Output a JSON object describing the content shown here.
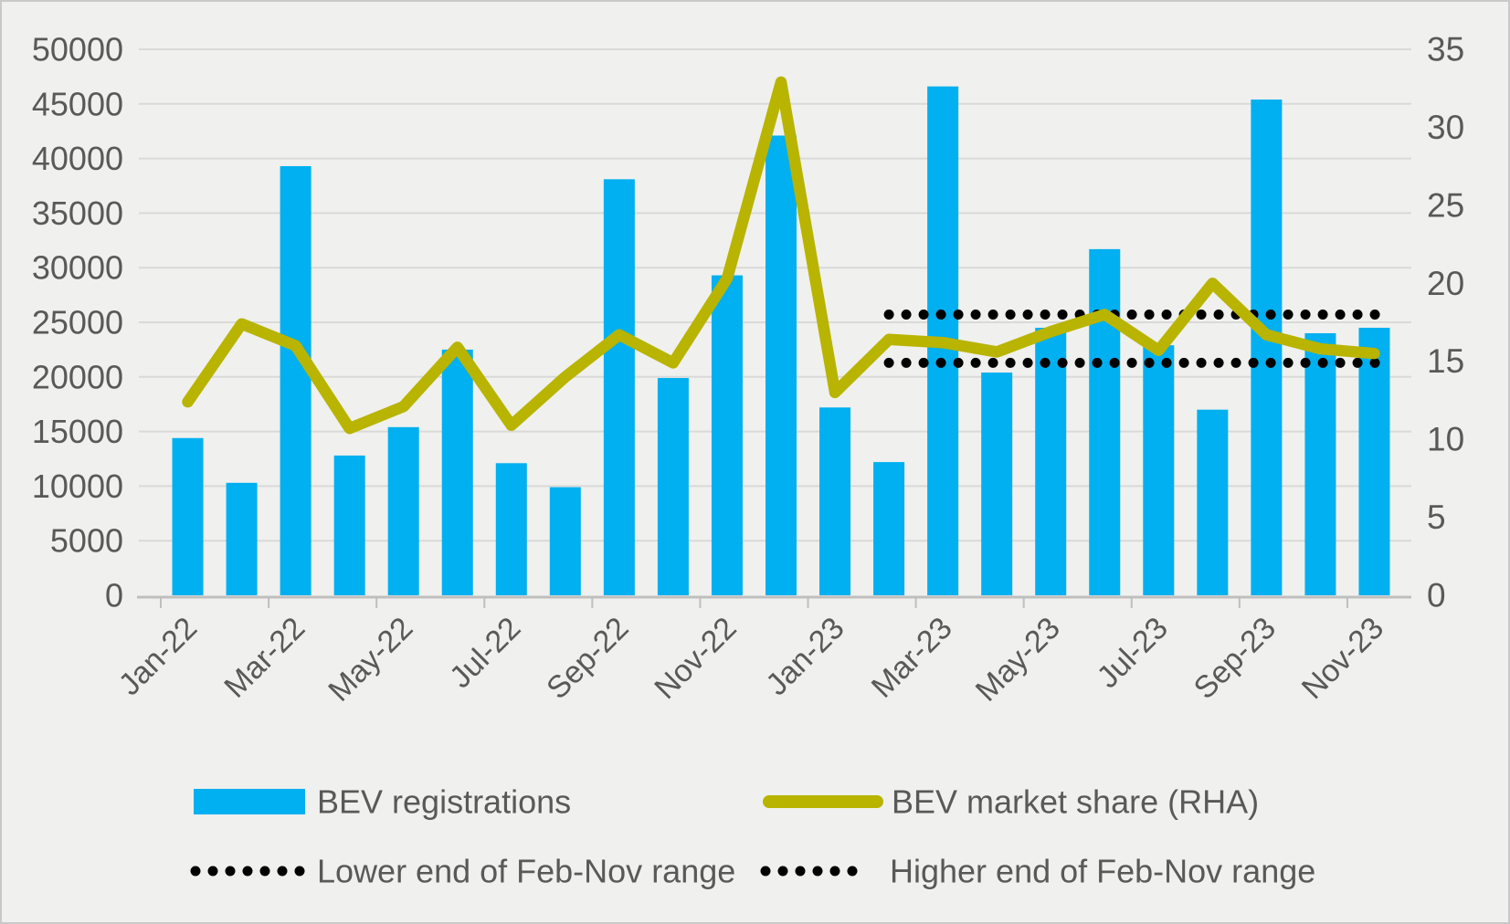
{
  "chart_data": {
    "type": "bar",
    "title": "",
    "categories": [
      "Jan-22",
      "Feb-22",
      "Mar-22",
      "Apr-22",
      "May-22",
      "Jun-22",
      "Jul-22",
      "Aug-22",
      "Sep-22",
      "Oct-22",
      "Nov-22",
      "Dec-22",
      "Jan-23",
      "Feb-23",
      "Mar-23",
      "Apr-23",
      "May-23",
      "Jun-23",
      "Jul-23",
      "Aug-23",
      "Sep-23",
      "Oct-23",
      "Nov-23"
    ],
    "x_tick_labels": [
      "Jan-22",
      "Mar-22",
      "May-22",
      "Jul-22",
      "Sep-22",
      "Nov-22",
      "Jan-23",
      "Mar-23",
      "May-23",
      "Jul-23",
      "Sep-23",
      "Nov-23"
    ],
    "series": [
      {
        "name": "BEV registrations",
        "type": "bar",
        "axis": "left",
        "values": [
          14400,
          10300,
          39300,
          12800,
          15400,
          22500,
          12100,
          9900,
          38100,
          19900,
          29300,
          42100,
          17200,
          12200,
          46600,
          20400,
          24500,
          31700,
          22900,
          17000,
          45400,
          24000,
          24500
        ]
      },
      {
        "name": "BEV market share (RHA)",
        "type": "line",
        "axis": "right",
        "values": [
          12.4,
          17.4,
          16.0,
          10.7,
          12.1,
          15.9,
          10.9,
          14.0,
          16.7,
          14.9,
          20.3,
          32.9,
          13.0,
          16.4,
          16.2,
          15.6,
          16.9,
          18.0,
          15.7,
          20.0,
          16.7,
          15.8,
          15.5
        ]
      },
      {
        "name": "Lower end of Feb-Nov range",
        "type": "dotted",
        "axis": "right",
        "constant": 14.9,
        "from": "Feb-23",
        "to": "Nov-23"
      },
      {
        "name": "Higher end of Feb-Nov range",
        "type": "dotted",
        "axis": "right",
        "constant": 18.0,
        "from": "Feb-23",
        "to": "Nov-23"
      }
    ],
    "left_axis": {
      "min": 0,
      "max": 50000,
      "step": 5000,
      "tick_labels": [
        "0",
        "5000",
        "10000",
        "15000",
        "20000",
        "25000",
        "30000",
        "35000",
        "40000",
        "45000",
        "50000"
      ]
    },
    "right_axis": {
      "min": 0,
      "max": 35,
      "step": 5,
      "tick_labels": [
        "0",
        "5",
        "10",
        "15",
        "20",
        "25",
        "30",
        "35"
      ]
    },
    "grid": true,
    "legend_position": "bottom"
  },
  "legend": {
    "row1": [
      {
        "label": "BEV registrations",
        "swatch": "bar"
      },
      {
        "label": "BEV market share (RHA)",
        "swatch": "line"
      }
    ],
    "row2": [
      {
        "label": "Lower end of Feb-Nov range",
        "swatch": "dotted"
      },
      {
        "label": "Higher end of Feb-Nov range",
        "swatch": "dotted"
      }
    ]
  },
  "colors": {
    "bar": "#00b0f0",
    "line": "#b8b400",
    "dotted": "#000000",
    "grid": "#d9d9d9",
    "axis_line": "#bfbfbf",
    "axis_text": "#595959",
    "legend_text": "#3f3f3f",
    "background": "#f0f0ee",
    "frame": "#c9c9c9"
  }
}
